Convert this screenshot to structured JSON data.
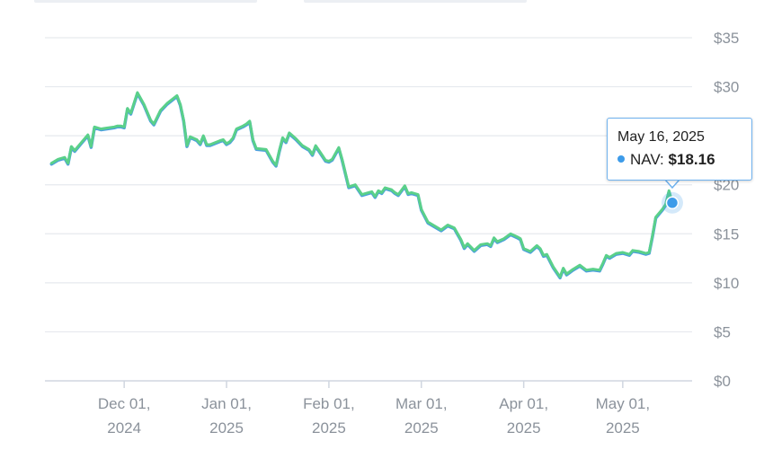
{
  "tooltip": {
    "date": "May 16, 2025",
    "series_label": "NAV:",
    "value": "$18.16"
  },
  "colors": {
    "line_top": "#5ad08a",
    "line_under": "#4a9de0",
    "marker": "#3d9be9",
    "grid": "#e6e9ee",
    "axis": "#d0d6e0",
    "tooltip_border": "#6fb2ee"
  },
  "chart_data": {
    "type": "line",
    "title": "",
    "xlabel": "",
    "ylabel": "",
    "ylim": [
      0,
      35
    ],
    "y_ticks": [
      {
        "value": 0,
        "label": "$0"
      },
      {
        "value": 5,
        "label": "$5"
      },
      {
        "value": 10,
        "label": "$10"
      },
      {
        "value": 15,
        "label": "$15"
      },
      {
        "value": 20,
        "label": "$20"
      },
      {
        "value": 25,
        "label": "$25"
      },
      {
        "value": 30,
        "label": "$30"
      },
      {
        "value": 35,
        "label": "$35"
      }
    ],
    "xlim": [
      "2024-11-07",
      "2025-05-22"
    ],
    "x_ticks": [
      {
        "date": "2024-12-01",
        "line1": "Dec 01,",
        "line2": "2024"
      },
      {
        "date": "2025-01-01",
        "line1": "Jan 01,",
        "line2": "2025"
      },
      {
        "date": "2025-02-01",
        "line1": "Feb 01,",
        "line2": "2025"
      },
      {
        "date": "2025-03-01",
        "line1": "Mar 01,",
        "line2": "2025"
      },
      {
        "date": "2025-04-01",
        "line1": "Apr 01,",
        "line2": "2025"
      },
      {
        "date": "2025-05-01",
        "line1": "May 01,",
        "line2": "2025"
      }
    ],
    "grid": true,
    "highlight": {
      "date": "2025-05-16",
      "value": 18.16
    },
    "series": [
      {
        "points": [
          [
            "2024-11-09",
            22.2
          ],
          [
            "2024-11-11",
            22.6
          ],
          [
            "2024-11-13",
            22.8
          ],
          [
            "2024-11-14",
            22.2
          ],
          [
            "2024-11-15",
            23.9
          ],
          [
            "2024-11-16",
            23.5
          ],
          [
            "2024-11-18",
            24.3
          ],
          [
            "2024-11-20",
            25.1
          ],
          [
            "2024-11-21",
            23.9
          ],
          [
            "2024-11-22",
            25.9
          ],
          [
            "2024-11-24",
            25.7
          ],
          [
            "2024-11-26",
            25.8
          ],
          [
            "2024-11-28",
            25.9
          ],
          [
            "2024-11-29",
            26.0
          ],
          [
            "2024-11-30",
            26.0
          ],
          [
            "2024-12-01",
            25.9
          ],
          [
            "2024-12-02",
            27.8
          ],
          [
            "2024-12-03",
            27.3
          ],
          [
            "2024-12-05",
            29.4
          ],
          [
            "2024-12-07",
            28.2
          ],
          [
            "2024-12-09",
            26.6
          ],
          [
            "2024-12-10",
            26.2
          ],
          [
            "2024-12-12",
            27.6
          ],
          [
            "2024-12-14",
            28.3
          ],
          [
            "2024-12-17",
            29.1
          ],
          [
            "2024-12-18",
            28.2
          ],
          [
            "2024-12-19",
            26.6
          ],
          [
            "2024-12-20",
            24.0
          ],
          [
            "2024-12-21",
            24.9
          ],
          [
            "2024-12-23",
            24.6
          ],
          [
            "2024-12-24",
            24.2
          ],
          [
            "2024-12-25",
            25.0
          ],
          [
            "2024-12-26",
            24.1
          ],
          [
            "2024-12-27",
            24.1
          ],
          [
            "2024-12-30",
            24.5
          ],
          [
            "2024-12-31",
            24.6
          ],
          [
            "2025-01-01",
            24.2
          ],
          [
            "2025-01-02",
            24.4
          ],
          [
            "2025-01-03",
            24.8
          ],
          [
            "2025-01-04",
            25.7
          ],
          [
            "2025-01-06",
            26.0
          ],
          [
            "2025-01-07",
            26.2
          ],
          [
            "2025-01-08",
            26.5
          ],
          [
            "2025-01-09",
            24.6
          ],
          [
            "2025-01-10",
            23.7
          ],
          [
            "2025-01-13",
            23.6
          ],
          [
            "2025-01-15",
            22.4
          ],
          [
            "2025-01-16",
            22.0
          ],
          [
            "2025-01-17",
            23.5
          ],
          [
            "2025-01-18",
            24.8
          ],
          [
            "2025-01-19",
            24.4
          ],
          [
            "2025-01-20",
            25.3
          ],
          [
            "2025-01-22",
            24.7
          ],
          [
            "2025-01-24",
            24.0
          ],
          [
            "2025-01-26",
            23.6
          ],
          [
            "2025-01-27",
            23.1
          ],
          [
            "2025-01-28",
            24.0
          ],
          [
            "2025-01-29",
            23.5
          ],
          [
            "2025-01-30",
            23.0
          ],
          [
            "2025-01-31",
            22.5
          ],
          [
            "2025-02-01",
            22.4
          ],
          [
            "2025-02-02",
            22.6
          ],
          [
            "2025-02-04",
            23.8
          ],
          [
            "2025-02-05",
            22.6
          ],
          [
            "2025-02-06",
            21.2
          ],
          [
            "2025-02-07",
            19.8
          ],
          [
            "2025-02-09",
            20.0
          ],
          [
            "2025-02-11",
            19.0
          ],
          [
            "2025-02-13",
            19.2
          ],
          [
            "2025-02-14",
            19.3
          ],
          [
            "2025-02-15",
            18.8
          ],
          [
            "2025-02-16",
            19.4
          ],
          [
            "2025-02-17",
            19.2
          ],
          [
            "2025-02-18",
            19.7
          ],
          [
            "2025-02-20",
            19.5
          ],
          [
            "2025-02-21",
            19.2
          ],
          [
            "2025-02-22",
            19.0
          ],
          [
            "2025-02-24",
            19.9
          ],
          [
            "2025-02-25",
            19.1
          ],
          [
            "2025-02-26",
            19.2
          ],
          [
            "2025-02-28",
            19.0
          ],
          [
            "2025-03-01",
            17.5
          ],
          [
            "2025-03-03",
            16.2
          ],
          [
            "2025-03-05",
            15.8
          ],
          [
            "2025-03-07",
            15.4
          ],
          [
            "2025-03-09",
            15.9
          ],
          [
            "2025-03-11",
            15.6
          ],
          [
            "2025-03-13",
            14.4
          ],
          [
            "2025-03-14",
            13.6
          ],
          [
            "2025-03-15",
            14.0
          ],
          [
            "2025-03-17",
            13.3
          ],
          [
            "2025-03-19",
            13.9
          ],
          [
            "2025-03-21",
            14.0
          ],
          [
            "2025-03-22",
            13.8
          ],
          [
            "2025-03-23",
            14.6
          ],
          [
            "2025-03-24",
            14.2
          ],
          [
            "2025-03-26",
            14.5
          ],
          [
            "2025-03-28",
            15.0
          ],
          [
            "2025-03-30",
            14.7
          ],
          [
            "2025-03-31",
            14.5
          ],
          [
            "2025-04-01",
            13.5
          ],
          [
            "2025-04-03",
            13.2
          ],
          [
            "2025-04-05",
            13.8
          ],
          [
            "2025-04-06",
            13.5
          ],
          [
            "2025-04-07",
            12.8
          ],
          [
            "2025-04-08",
            12.9
          ],
          [
            "2025-04-10",
            11.6
          ],
          [
            "2025-04-12",
            10.6
          ],
          [
            "2025-04-13",
            11.5
          ],
          [
            "2025-04-14",
            10.9
          ],
          [
            "2025-04-16",
            11.4
          ],
          [
            "2025-04-18",
            11.8
          ],
          [
            "2025-04-20",
            11.3
          ],
          [
            "2025-04-22",
            11.4
          ],
          [
            "2025-04-24",
            11.3
          ],
          [
            "2025-04-25",
            12.0
          ],
          [
            "2025-04-26",
            12.8
          ],
          [
            "2025-04-27",
            12.6
          ],
          [
            "2025-04-29",
            13.0
          ],
          [
            "2025-05-01",
            13.1
          ],
          [
            "2025-05-03",
            12.9
          ],
          [
            "2025-05-04",
            13.3
          ],
          [
            "2025-05-06",
            13.2
          ],
          [
            "2025-05-08",
            13.0
          ],
          [
            "2025-05-09",
            13.1
          ],
          [
            "2025-05-10",
            14.8
          ],
          [
            "2025-05-11",
            16.7
          ],
          [
            "2025-05-13",
            17.5
          ],
          [
            "2025-05-14",
            18.0
          ],
          [
            "2025-05-15",
            19.4
          ],
          [
            "2025-05-16",
            18.16
          ]
        ]
      }
    ]
  }
}
